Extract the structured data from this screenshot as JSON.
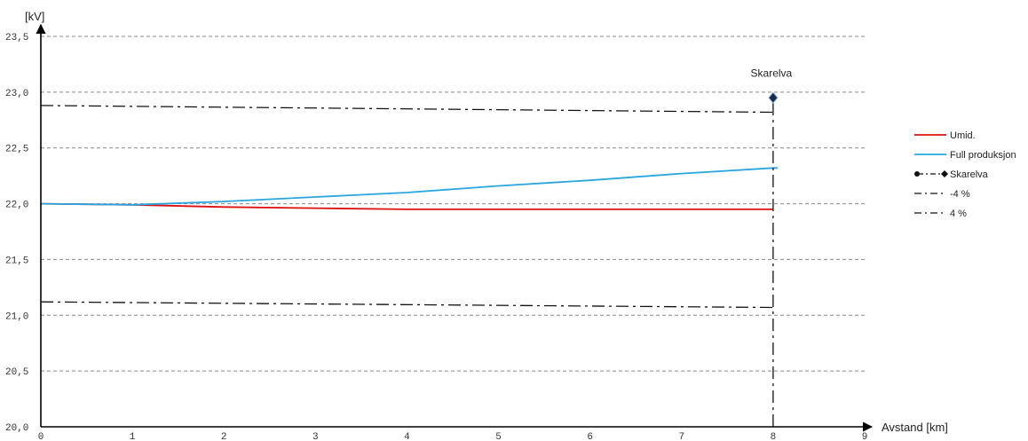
{
  "chart_data": {
    "type": "line",
    "ylabel": "[kV]",
    "xlabel": "Avstand [km]",
    "xlim": [
      0,
      9
    ],
    "ylim": [
      20.0,
      23.5
    ],
    "x_ticks": [
      {
        "value": 0,
        "label": "0"
      },
      {
        "value": 1,
        "label": "1"
      },
      {
        "value": 2,
        "label": "2"
      },
      {
        "value": 3,
        "label": "3"
      },
      {
        "value": 4,
        "label": "4"
      },
      {
        "value": 5,
        "label": "5"
      },
      {
        "value": 6,
        "label": "6"
      },
      {
        "value": 7,
        "label": "7"
      },
      {
        "value": 8,
        "label": "8"
      },
      {
        "value": 9,
        "label": "9"
      }
    ],
    "y_ticks": [
      {
        "value": 20.0,
        "label": "20,0"
      },
      {
        "value": 20.5,
        "label": "20,5"
      },
      {
        "value": 21.0,
        "label": "21,0"
      },
      {
        "value": 21.5,
        "label": "21,5"
      },
      {
        "value": 22.0,
        "label": "22,0"
      },
      {
        "value": 22.5,
        "label": "22,5"
      },
      {
        "value": 23.0,
        "label": "23,0"
      },
      {
        "value": 23.5,
        "label": "23,5"
      }
    ],
    "grid": "horizontal dashed",
    "legend_position": "right",
    "series": [
      {
        "name": "Umid.",
        "color": "#dd1111",
        "style": "solid",
        "x": [
          0,
          1,
          2,
          3,
          4,
          5,
          6,
          7,
          8
        ],
        "y": [
          22.0,
          21.99,
          21.97,
          21.96,
          21.95,
          21.95,
          21.95,
          21.95,
          21.95
        ]
      },
      {
        "name": "Full produksjon",
        "color": "#29a6e0",
        "style": "solid",
        "x": [
          0,
          1,
          2,
          3,
          4,
          5,
          6,
          7,
          8,
          8.05
        ],
        "y": [
          22.0,
          21.99,
          22.02,
          22.06,
          22.1,
          22.16,
          22.21,
          22.27,
          22.32,
          22.32
        ]
      },
      {
        "name": "Skarelva",
        "color": "#111111",
        "style": "dash-dot",
        "x": [
          8,
          8
        ],
        "y": [
          20.0,
          22.95
        ]
      },
      {
        "name": "-4 %",
        "color": "#111111",
        "style": "dash-dot",
        "x": [
          0,
          8
        ],
        "y": [
          21.12,
          21.07
        ]
      },
      {
        "name": "4 %",
        "color": "#111111",
        "style": "dash-dot",
        "x": [
          0,
          8
        ],
        "y": [
          22.88,
          22.82
        ]
      }
    ],
    "points": [
      {
        "name": "Skarelva",
        "x": 8,
        "y": 22.95,
        "marker": "diamond",
        "color": "#1a2a4a"
      }
    ],
    "annotations": [
      {
        "text": "Skarelva",
        "x": 8,
        "y": 23.14
      }
    ],
    "legend": [
      {
        "label": "Umid.",
        "series_index": 0,
        "symbol": "line"
      },
      {
        "label": "Full produksjon",
        "series_index": 1,
        "symbol": "line"
      },
      {
        "label": "Skarelva",
        "series_index": 2,
        "symbol": "dot-dashdot-diamond"
      },
      {
        "label": "-4 %",
        "series_index": 3,
        "symbol": "dashdot"
      },
      {
        "label": "4 %",
        "series_index": 4,
        "symbol": "dashdot"
      }
    ]
  }
}
